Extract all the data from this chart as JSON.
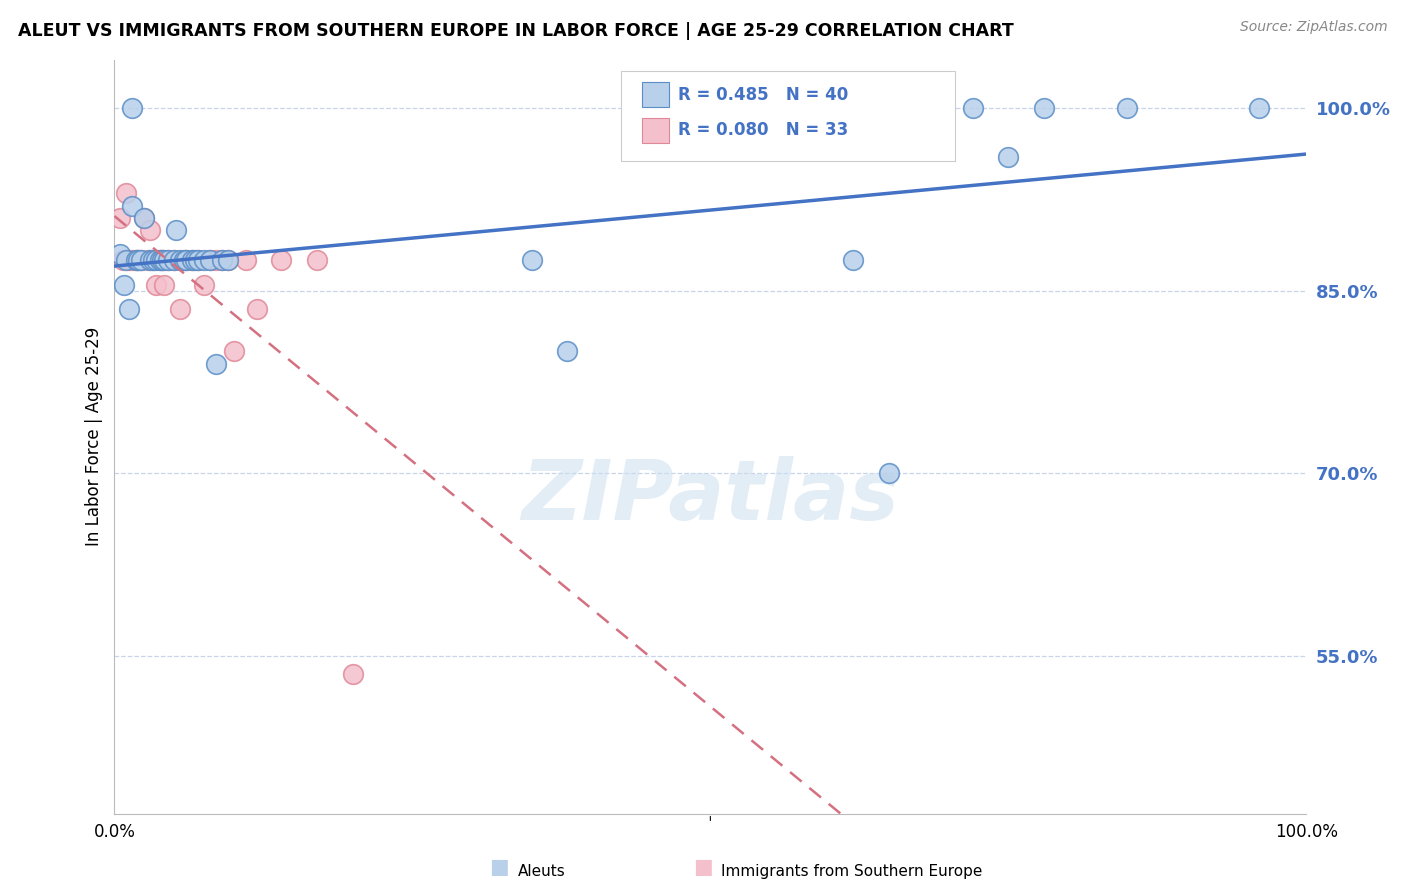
{
  "title": "ALEUT VS IMMIGRANTS FROM SOUTHERN EUROPE IN LABOR FORCE | AGE 25-29 CORRELATION CHART",
  "source": "Source: ZipAtlas.com",
  "ylabel": "In Labor Force | Age 25-29",
  "watermark": "ZIPatlas",
  "blue_R": 0.485,
  "blue_N": 40,
  "pink_R": 0.08,
  "pink_N": 33,
  "blue_fill_color": "#b8d0ea",
  "pink_fill_color": "#f4c0cc",
  "blue_edge_color": "#5b8ec7",
  "pink_edge_color": "#e08898",
  "blue_line_color": "#4472c4",
  "pink_line_color": "#d47080",
  "grid_color": "#c8d4e8",
  "ytick_color": "#4472c4",
  "blue_points_x": [
    0.005,
    0.008,
    0.01,
    0.012,
    0.015,
    0.015,
    0.018,
    0.02,
    0.022,
    0.025,
    0.03,
    0.032,
    0.035,
    0.038,
    0.04,
    0.042,
    0.045,
    0.05,
    0.052,
    0.055,
    0.058,
    0.06,
    0.065,
    0.068,
    0.07,
    0.075,
    0.08,
    0.085,
    0.09,
    0.095,
    0.35,
    0.38,
    0.62,
    0.65,
    0.68,
    0.72,
    0.75,
    0.78,
    0.85,
    0.96
  ],
  "blue_points_y": [
    0.88,
    0.855,
    0.875,
    0.835,
    1.0,
    0.92,
    0.875,
    0.875,
    0.875,
    0.91,
    0.875,
    0.875,
    0.875,
    0.875,
    0.875,
    0.875,
    0.875,
    0.875,
    0.9,
    0.875,
    0.875,
    0.875,
    0.875,
    0.875,
    0.875,
    0.875,
    0.875,
    0.79,
    0.875,
    0.875,
    0.875,
    0.8,
    0.875,
    0.7,
    1.0,
    1.0,
    0.96,
    1.0,
    1.0,
    1.0
  ],
  "pink_points_x": [
    0.005,
    0.007,
    0.01,
    0.012,
    0.015,
    0.018,
    0.02,
    0.022,
    0.025,
    0.028,
    0.03,
    0.032,
    0.035,
    0.038,
    0.04,
    0.042,
    0.045,
    0.05,
    0.055,
    0.06,
    0.065,
    0.07,
    0.075,
    0.08,
    0.085,
    0.09,
    0.095,
    0.1,
    0.11,
    0.12,
    0.14,
    0.17,
    0.2
  ],
  "pink_points_y": [
    0.91,
    0.875,
    0.93,
    0.875,
    0.875,
    0.875,
    0.875,
    0.875,
    0.91,
    0.875,
    0.9,
    0.875,
    0.855,
    0.875,
    0.875,
    0.855,
    0.875,
    0.875,
    0.835,
    0.875,
    0.875,
    0.875,
    0.855,
    0.875,
    0.875,
    0.875,
    0.875,
    0.8,
    0.875,
    0.835,
    0.875,
    0.875,
    0.535
  ],
  "xlim": [
    0.0,
    1.0
  ],
  "ylim": [
    0.42,
    1.04
  ],
  "yticks": [
    0.55,
    0.7,
    0.85,
    1.0
  ],
  "ytick_labels": [
    "55.0%",
    "70.0%",
    "85.0%",
    "100.0%"
  ],
  "xtick_labels": [
    "0.0%",
    "100.0%"
  ],
  "legend_blue_label": "Aleuts",
  "legend_pink_label": "Immigrants from Southern Europe",
  "background_color": "#ffffff"
}
